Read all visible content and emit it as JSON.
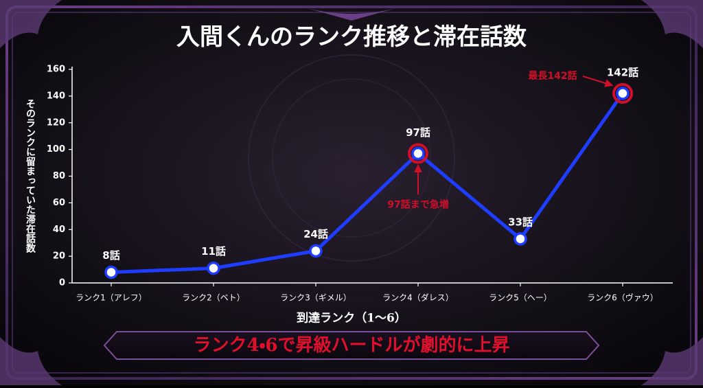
{
  "chart_data": {
    "type": "line",
    "title": "入間くんのランク推移と滞在話数",
    "x_label": "到達ランク（1～6）",
    "y_label": "そのランクに留まっていた滞在話数",
    "categories": [
      "ランク1（アレフ）",
      "ランク2（ベト）",
      "ランク3（ギメル）",
      "ランク4（ダレス）",
      "ランク5（ヘー）",
      "ランク6（ヴァウ）"
    ],
    "series": [
      {
        "color": "#1f3dff",
        "values": [
          8,
          11,
          24,
          97,
          33,
          142
        ],
        "value_labels": [
          "8話",
          "11話",
          "24話",
          "97話",
          "33話",
          "142話"
        ]
      }
    ],
    "highlight_color": "#d01028",
    "annotations": [
      {
        "text": "97話まで急増",
        "index": 3
      },
      {
        "text": "最長142話",
        "index": 5
      }
    ],
    "banner": "ランク4・6で昇級ハードルが劇的に上昇",
    "ylim": [
      0,
      160
    ],
    "yticks": [
      0,
      20,
      40,
      60,
      80,
      100,
      120,
      140,
      160
    ],
    "grid": false
  }
}
